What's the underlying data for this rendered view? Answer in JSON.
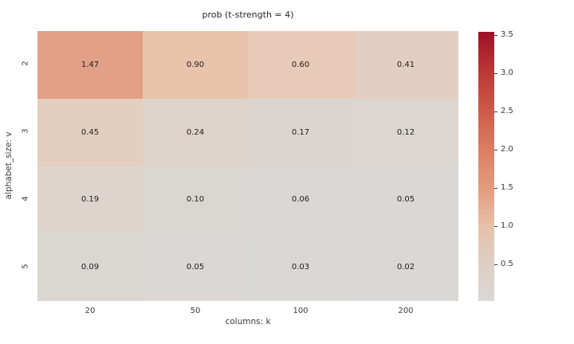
{
  "title": "prob (t-strength = 4)",
  "chart_data": {
    "type": "heatmap",
    "title": "prob (t-strength = 4)",
    "xlabel": "columns: k",
    "ylabel": "alphabet_size: v",
    "x_categories": [
      "20",
      "50",
      "100",
      "200"
    ],
    "y_categories": [
      "2",
      "3",
      "4",
      "5"
    ],
    "values": [
      [
        1.47,
        0.9,
        0.6,
        0.41
      ],
      [
        0.45,
        0.24,
        0.17,
        0.12
      ],
      [
        0.19,
        0.1,
        0.06,
        0.05
      ],
      [
        0.09,
        0.05,
        0.03,
        0.02
      ]
    ],
    "cell_labels": [
      [
        "1.47",
        "0.90",
        "0.60",
        "0.41"
      ],
      [
        "0.45",
        "0.24",
        "0.17",
        "0.12"
      ],
      [
        "0.19",
        "0.10",
        "0.06",
        "0.05"
      ],
      [
        "0.09",
        "0.05",
        "0.03",
        "0.02"
      ]
    ],
    "cell_colors": [
      [
        "#e2a087",
        "#e9c3ac",
        "#e7cbb8",
        "#e3cfc1"
      ],
      [
        "#e4cebf",
        "#ded3cb",
        "#dcd5cf",
        "#dbd6d1"
      ],
      [
        "#ddd4cd",
        "#dad6d2",
        "#dad7d4",
        "#dad7d4"
      ],
      [
        "#dad7d3",
        "#dad7d4",
        "#d9d8d5",
        "#d9d8d6"
      ]
    ],
    "grid": false,
    "annotation_color": "#1f1f1f",
    "colorbar": {
      "vmin": 0.02,
      "vmax": 3.54,
      "tick_labels": [
        "3.5",
        "3.0",
        "2.5",
        "2.0",
        "1.5",
        "1.0",
        "0.5"
      ],
      "tick_values": [
        3.5,
        3.0,
        2.5,
        2.0,
        1.5,
        1.0,
        0.5
      ],
      "gradient_stops": [
        {
          "value": 0.02,
          "color": "#dad8d6"
        },
        {
          "value": 0.5,
          "color": "#decfc3"
        },
        {
          "value": 1.0,
          "color": "#e7c1a9"
        },
        {
          "value": 1.5,
          "color": "#e39b7e"
        },
        {
          "value": 2.0,
          "color": "#db7f63"
        },
        {
          "value": 2.5,
          "color": "#ce5a49"
        },
        {
          "value": 3.0,
          "color": "#bb3a36"
        },
        {
          "value": 3.54,
          "color": "#9c1127"
        }
      ]
    }
  }
}
